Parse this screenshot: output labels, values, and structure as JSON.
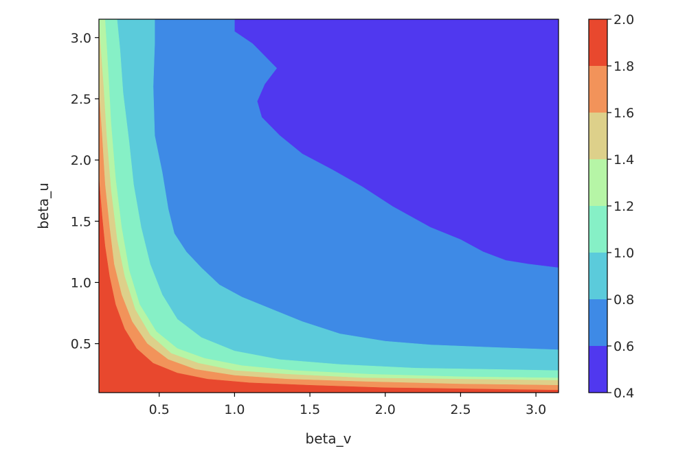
{
  "chart_data": {
    "type": "heatmap",
    "subtype": "filled-contour",
    "title": "",
    "xlabel": "beta_v",
    "ylabel": "beta_u",
    "xlim": [
      0.1,
      3.15
    ],
    "ylim": [
      0.1,
      3.15
    ],
    "xticks": [
      {
        "value": 0.5,
        "label": "0.5"
      },
      {
        "value": 1.0,
        "label": "1.0"
      },
      {
        "value": 1.5,
        "label": "1.5"
      },
      {
        "value": 2.0,
        "label": "2.0"
      },
      {
        "value": 2.5,
        "label": "2.5"
      },
      {
        "value": 3.0,
        "label": "3.0"
      }
    ],
    "yticks": [
      {
        "value": 0.5,
        "label": "0.5"
      },
      {
        "value": 1.0,
        "label": "1.0"
      },
      {
        "value": 1.5,
        "label": "1.5"
      },
      {
        "value": 2.0,
        "label": "2.0"
      },
      {
        "value": 2.5,
        "label": "2.5"
      },
      {
        "value": 3.0,
        "label": "3.0"
      }
    ],
    "colorbar": {
      "placement": "right",
      "range": [
        0.4,
        2.0
      ],
      "levels": [
        0.4,
        0.6,
        0.8,
        1.0,
        1.2,
        1.4,
        1.6,
        1.8,
        2.0
      ],
      "tick_labels": [
        "0.4",
        "0.6",
        "0.8",
        "1.0",
        "1.2",
        "1.4",
        "1.6",
        "1.8",
        "2.0"
      ],
      "colors": [
        "#5038ef",
        "#3e8ae6",
        "#5bcbdb",
        "#86f0c6",
        "#b6f5a6",
        "#ddd08a",
        "#f2935a",
        "#e8482e"
      ]
    },
    "contours": [
      {
        "level": 0.6,
        "points": [
          [
            1.0,
            3.15
          ],
          [
            1.0,
            3.05
          ],
          [
            1.12,
            2.95
          ],
          [
            1.2,
            2.85
          ],
          [
            1.28,
            2.75
          ],
          [
            1.2,
            2.62
          ],
          [
            1.15,
            2.48
          ],
          [
            1.18,
            2.35
          ],
          [
            1.3,
            2.2
          ],
          [
            1.45,
            2.05
          ],
          [
            1.65,
            1.92
          ],
          [
            1.85,
            1.78
          ],
          [
            2.05,
            1.62
          ],
          [
            2.3,
            1.45
          ],
          [
            2.5,
            1.35
          ],
          [
            2.65,
            1.25
          ],
          [
            2.8,
            1.18
          ],
          [
            2.95,
            1.15
          ],
          [
            3.15,
            1.12
          ]
        ]
      },
      {
        "level": 0.8,
        "points": [
          [
            0.47,
            3.15
          ],
          [
            0.47,
            2.95
          ],
          [
            0.46,
            2.6
          ],
          [
            0.47,
            2.2
          ],
          [
            0.52,
            1.9
          ],
          [
            0.56,
            1.6
          ],
          [
            0.6,
            1.4
          ],
          [
            0.68,
            1.25
          ],
          [
            0.78,
            1.12
          ],
          [
            0.9,
            0.98
          ],
          [
            1.05,
            0.88
          ],
          [
            1.25,
            0.78
          ],
          [
            1.45,
            0.68
          ],
          [
            1.7,
            0.58
          ],
          [
            2.0,
            0.52
          ],
          [
            2.3,
            0.49
          ],
          [
            2.7,
            0.47
          ],
          [
            3.15,
            0.45
          ]
        ]
      },
      {
        "level": 1.0,
        "points": [
          [
            0.22,
            3.15
          ],
          [
            0.24,
            2.9
          ],
          [
            0.26,
            2.55
          ],
          [
            0.3,
            2.15
          ],
          [
            0.33,
            1.8
          ],
          [
            0.38,
            1.45
          ],
          [
            0.44,
            1.15
          ],
          [
            0.52,
            0.9
          ],
          [
            0.62,
            0.7
          ],
          [
            0.78,
            0.55
          ],
          [
            1.0,
            0.44
          ],
          [
            1.3,
            0.37
          ],
          [
            1.7,
            0.33
          ],
          [
            2.2,
            0.3
          ],
          [
            2.7,
            0.29
          ],
          [
            3.15,
            0.28
          ]
        ]
      },
      {
        "level": 1.2,
        "points": [
          [
            0.14,
            3.15
          ],
          [
            0.16,
            2.75
          ],
          [
            0.18,
            2.3
          ],
          [
            0.21,
            1.85
          ],
          [
            0.25,
            1.45
          ],
          [
            0.3,
            1.1
          ],
          [
            0.37,
            0.82
          ],
          [
            0.48,
            0.6
          ],
          [
            0.62,
            0.46
          ],
          [
            0.8,
            0.38
          ],
          [
            1.05,
            0.32
          ],
          [
            1.4,
            0.28
          ],
          [
            1.9,
            0.25
          ],
          [
            2.5,
            0.23
          ],
          [
            3.15,
            0.22
          ]
        ]
      },
      {
        "level": 1.4,
        "points": [
          [
            0.1,
            3.1
          ],
          [
            0.13,
            2.6
          ],
          [
            0.15,
            2.2
          ],
          [
            0.18,
            1.75
          ],
          [
            0.22,
            1.35
          ],
          [
            0.27,
            1.05
          ],
          [
            0.34,
            0.78
          ],
          [
            0.44,
            0.57
          ],
          [
            0.58,
            0.42
          ],
          [
            0.76,
            0.34
          ],
          [
            1.0,
            0.28
          ],
          [
            1.35,
            0.25
          ],
          [
            1.85,
            0.22
          ],
          [
            2.5,
            0.21
          ],
          [
            3.15,
            0.2
          ]
        ]
      },
      {
        "level": 1.6,
        "points": [
          [
            0.1,
            2.55
          ],
          [
            0.12,
            2.2
          ],
          [
            0.14,
            1.8
          ],
          [
            0.17,
            1.45
          ],
          [
            0.2,
            1.15
          ],
          [
            0.25,
            0.9
          ],
          [
            0.32,
            0.68
          ],
          [
            0.42,
            0.5
          ],
          [
            0.56,
            0.37
          ],
          [
            0.74,
            0.29
          ],
          [
            1.0,
            0.24
          ],
          [
            1.35,
            0.21
          ],
          [
            1.85,
            0.19
          ],
          [
            2.5,
            0.17
          ],
          [
            3.15,
            0.16
          ]
        ]
      },
      {
        "level": 1.8,
        "points": [
          [
            0.1,
            1.85
          ],
          [
            0.12,
            1.55
          ],
          [
            0.14,
            1.3
          ],
          [
            0.17,
            1.05
          ],
          [
            0.21,
            0.82
          ],
          [
            0.27,
            0.62
          ],
          [
            0.35,
            0.46
          ],
          [
            0.46,
            0.34
          ],
          [
            0.62,
            0.26
          ],
          [
            0.82,
            0.21
          ],
          [
            1.1,
            0.18
          ],
          [
            1.5,
            0.16
          ],
          [
            2.0,
            0.14
          ],
          [
            2.6,
            0.13
          ],
          [
            3.15,
            0.12
          ]
        ]
      }
    ]
  }
}
